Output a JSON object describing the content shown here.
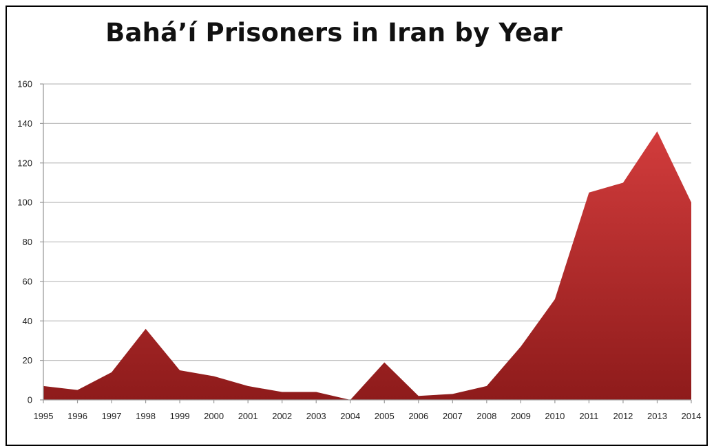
{
  "chart_data": {
    "type": "area",
    "title": "Bahá’í Prisoners in Iran by Year",
    "xlabel": "",
    "ylabel": "",
    "categories": [
      "1995",
      "1996",
      "1997",
      "1998",
      "1999",
      "2000",
      "2001",
      "2002",
      "2003",
      "2004",
      "2005",
      "2006",
      "2007",
      "2008",
      "2009",
      "2010",
      "2011",
      "2012",
      "2013",
      "2014"
    ],
    "values": [
      7,
      5,
      14,
      36,
      15,
      12,
      7,
      4,
      4,
      0,
      19,
      2,
      3,
      7,
      27,
      51,
      105,
      110,
      136,
      100
    ],
    "ylim": [
      0,
      160
    ],
    "yticks": [
      "0",
      "20",
      "40",
      "60",
      "80",
      "100",
      "120",
      "140",
      "160"
    ],
    "grid": true,
    "legend": "none",
    "colors": {
      "fill_top": "#d23c3c",
      "fill_bottom": "#8e1b1b",
      "gridline": "#bfbfbf",
      "axis": "#9a9a9a"
    }
  }
}
